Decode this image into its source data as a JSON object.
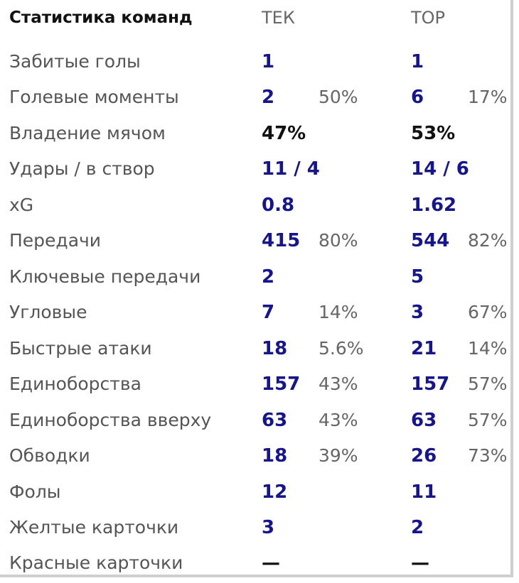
{
  "header": {
    "title": "Статистика команд",
    "team1": "ТЕК",
    "team2": "ТОР"
  },
  "rows": [
    {
      "label": "Забитые голы",
      "t1": "1",
      "t1p": "",
      "t2": "1",
      "t2p": ""
    },
    {
      "label": "Голевые моменты",
      "t1": "2",
      "t1p": "50%",
      "t2": "6",
      "t2p": "17%"
    },
    {
      "label": "Владение мячом",
      "t1": "47%",
      "t1p": "",
      "t2": "53%",
      "t2p": ""
    },
    {
      "label": "Удары / в створ",
      "t1": "11 / 4",
      "t1p": "",
      "t2": "14 / 6",
      "t2p": ""
    },
    {
      "label": "xG",
      "t1": "0.8",
      "t1p": "",
      "t2": "1.62",
      "t2p": ""
    },
    {
      "label": "Передачи",
      "t1": "415",
      "t1p": "80%",
      "t2": "544",
      "t2p": "82%"
    },
    {
      "label": "Ключевые передачи",
      "t1": "2",
      "t1p": "",
      "t2": "5",
      "t2p": ""
    },
    {
      "label": "Угловые",
      "t1": "7",
      "t1p": "14%",
      "t2": "3",
      "t2p": "67%"
    },
    {
      "label": "Быстрые атаки",
      "t1": "18",
      "t1p": "5.6%",
      "t2": "21",
      "t2p": "14%"
    },
    {
      "label": "Единоборства",
      "t1": "157",
      "t1p": "43%",
      "t2": "157",
      "t2p": "57%"
    },
    {
      "label": "Единоборства вверху",
      "t1": "63",
      "t1p": "43%",
      "t2": "63",
      "t2p": "57%"
    },
    {
      "label": "Обводки",
      "t1": "18",
      "t1p": "39%",
      "t2": "26",
      "t2p": "73%"
    },
    {
      "label": "Фолы",
      "t1": "12",
      "t1p": "",
      "t2": "11",
      "t2p": ""
    },
    {
      "label": "Желтые карточки",
      "t1": "3",
      "t1p": "",
      "t2": "2",
      "t2p": ""
    },
    {
      "label": "Красные карточки",
      "t1": "—",
      "t1p": "",
      "t2": "—",
      "t2p": ""
    }
  ],
  "colors": {
    "value": "#16168a",
    "possession": "#111111",
    "label": "#555555",
    "percent": "#666666"
  }
}
